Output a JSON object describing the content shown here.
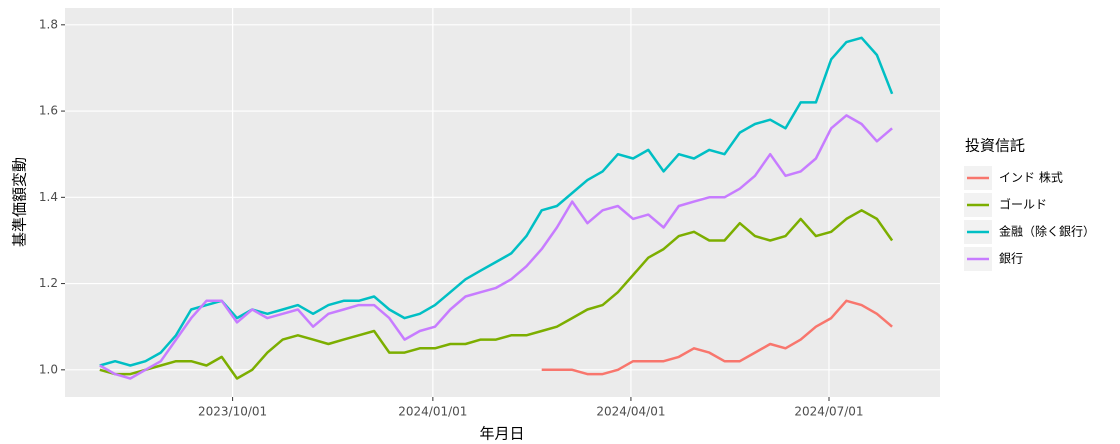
{
  "chart_data": {
    "type": "line",
    "x_label": "年月日",
    "y_label": "基準価額変動",
    "legend_title": "投資信託",
    "legend_position": "right",
    "grid": true,
    "x": [
      "2023/08/01",
      "2023/08/08",
      "2023/08/15",
      "2023/08/22",
      "2023/08/29",
      "2023/09/05",
      "2023/09/12",
      "2023/09/19",
      "2023/09/26",
      "2023/10/03",
      "2023/10/10",
      "2023/10/17",
      "2023/10/24",
      "2023/10/31",
      "2023/11/07",
      "2023/11/14",
      "2023/11/21",
      "2023/11/28",
      "2023/12/05",
      "2023/12/12",
      "2023/12/19",
      "2023/12/26",
      "2024/01/02",
      "2024/01/09",
      "2024/01/16",
      "2024/01/23",
      "2024/01/30",
      "2024/02/06",
      "2024/02/13",
      "2024/02/20",
      "2024/02/27",
      "2024/03/05",
      "2024/03/12",
      "2024/03/19",
      "2024/03/26",
      "2024/04/02",
      "2024/04/09",
      "2024/04/16",
      "2024/04/23",
      "2024/04/30",
      "2024/05/07",
      "2024/05/14",
      "2024/05/21",
      "2024/05/28",
      "2024/06/04",
      "2024/06/11",
      "2024/06/18",
      "2024/06/25",
      "2024/07/02",
      "2024/07/09",
      "2024/07/16",
      "2024/07/23",
      "2024/07/30"
    ],
    "xlim": [
      "2023/07/16",
      "2024/08/21"
    ],
    "xticks": [
      "2023/10/01",
      "2024/01/01",
      "2024/04/01",
      "2024/07/01"
    ],
    "ylim": [
      0.937,
      1.839
    ],
    "yticks": [
      {
        "value": 1,
        "label": "1.0"
      },
      {
        "value": 1.2,
        "label": "1.2"
      },
      {
        "value": 1.4,
        "label": "1.4"
      },
      {
        "value": 1.6,
        "label": "1.6"
      },
      {
        "value": 1.8,
        "label": "1.8"
      }
    ],
    "series": [
      {
        "name": "インド 株式",
        "color": "#F8766D",
        "values": [
          null,
          null,
          null,
          null,
          null,
          null,
          null,
          null,
          null,
          null,
          null,
          null,
          null,
          null,
          null,
          null,
          null,
          null,
          null,
          null,
          null,
          null,
          null,
          null,
          null,
          null,
          null,
          null,
          null,
          1.0,
          1.0,
          1.0,
          0.99,
          0.99,
          1.0,
          1.02,
          1.02,
          1.02,
          1.03,
          1.05,
          1.04,
          1.02,
          1.02,
          1.04,
          1.06,
          1.05,
          1.07,
          1.1,
          1.12,
          1.16,
          1.15,
          1.13,
          1.1
        ]
      },
      {
        "name": "ゴールド",
        "color": "#7CAE00",
        "values": [
          1.0,
          0.99,
          0.99,
          1.0,
          1.01,
          1.02,
          1.02,
          1.01,
          1.03,
          0.98,
          1.0,
          1.04,
          1.07,
          1.08,
          1.07,
          1.06,
          1.07,
          1.08,
          1.09,
          1.04,
          1.04,
          1.05,
          1.05,
          1.06,
          1.06,
          1.07,
          1.07,
          1.08,
          1.08,
          1.09,
          1.1,
          1.12,
          1.14,
          1.15,
          1.18,
          1.22,
          1.26,
          1.28,
          1.31,
          1.32,
          1.3,
          1.3,
          1.34,
          1.31,
          1.3,
          1.31,
          1.35,
          1.31,
          1.32,
          1.35,
          1.37,
          1.35,
          1.3
        ]
      },
      {
        "name": "金融（除く銀行）",
        "color": "#00BFC4",
        "values": [
          1.01,
          1.02,
          1.01,
          1.02,
          1.04,
          1.08,
          1.14,
          1.15,
          1.16,
          1.12,
          1.14,
          1.13,
          1.14,
          1.15,
          1.13,
          1.15,
          1.16,
          1.16,
          1.17,
          1.14,
          1.12,
          1.13,
          1.15,
          1.18,
          1.21,
          1.23,
          1.25,
          1.27,
          1.31,
          1.37,
          1.38,
          1.41,
          1.44,
          1.46,
          1.5,
          1.49,
          1.51,
          1.46,
          1.5,
          1.49,
          1.51,
          1.5,
          1.55,
          1.57,
          1.58,
          1.56,
          1.62,
          1.62,
          1.72,
          1.76,
          1.77,
          1.73,
          1.64
        ]
      },
      {
        "name": "銀行",
        "color": "#C77CFF",
        "values": [
          1.01,
          0.99,
          0.98,
          1.0,
          1.02,
          1.07,
          1.12,
          1.16,
          1.16,
          1.11,
          1.14,
          1.12,
          1.13,
          1.14,
          1.1,
          1.13,
          1.14,
          1.15,
          1.15,
          1.12,
          1.07,
          1.09,
          1.1,
          1.14,
          1.17,
          1.18,
          1.19,
          1.21,
          1.24,
          1.28,
          1.33,
          1.39,
          1.34,
          1.37,
          1.38,
          1.35,
          1.36,
          1.33,
          1.38,
          1.39,
          1.4,
          1.4,
          1.42,
          1.45,
          1.5,
          1.45,
          1.46,
          1.49,
          1.56,
          1.59,
          1.57,
          1.53,
          1.56
        ]
      }
    ]
  }
}
